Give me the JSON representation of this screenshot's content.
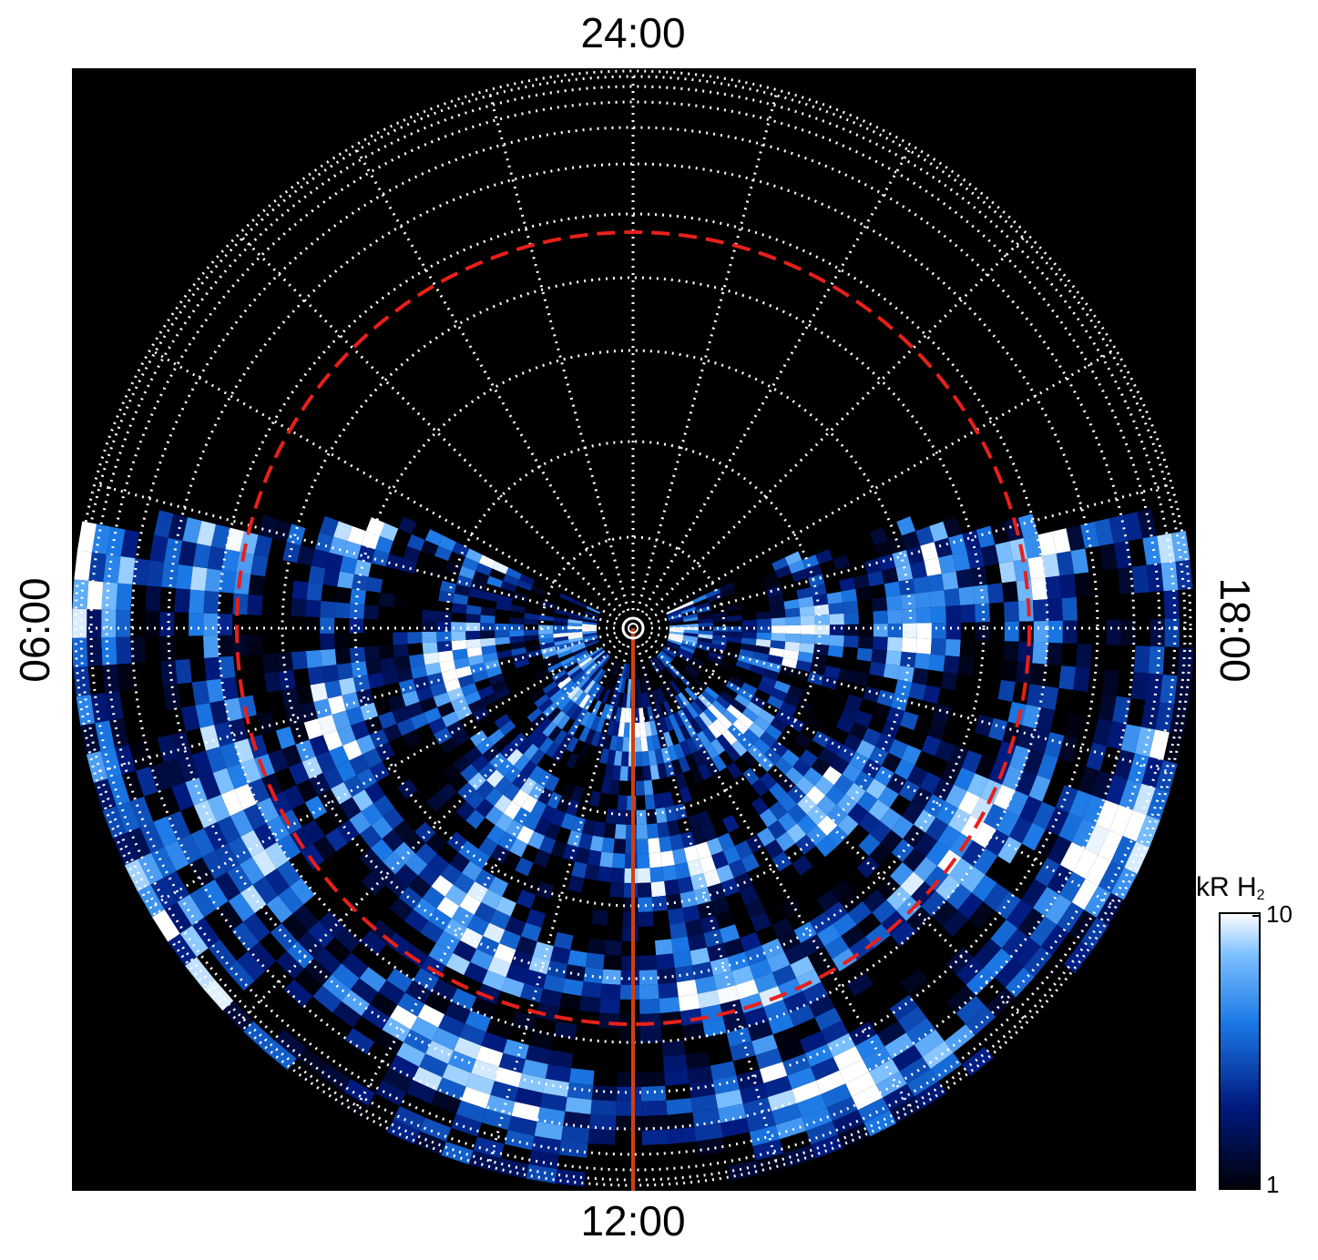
{
  "labels": {
    "top": "24:00",
    "bottom": "12:00",
    "left": "06:00",
    "right": "18:00"
  },
  "colorbar": {
    "title": "kR H",
    "title_subscript": "2",
    "lim": [
      1,
      10
    ],
    "ticks": [
      1,
      10
    ],
    "log": true
  }
}
